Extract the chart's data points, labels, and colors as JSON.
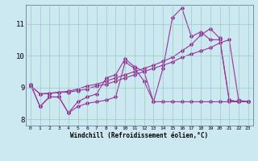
{
  "title": "",
  "xlabel": "Windchill (Refroidissement éolien,°C)",
  "ylabel": "",
  "background_color": "#cce8f0",
  "line_color": "#993399",
  "grid_color": "#99ccbb",
  "xlim": [
    -0.5,
    23.5
  ],
  "ylim": [
    7.8,
    11.6
  ],
  "yticks": [
    8,
    9,
    10,
    11
  ],
  "xticks": [
    0,
    1,
    2,
    3,
    4,
    5,
    6,
    7,
    8,
    9,
    10,
    11,
    12,
    13,
    14,
    15,
    16,
    17,
    18,
    19,
    20,
    21,
    22,
    23
  ],
  "x": [
    0,
    1,
    2,
    3,
    4,
    5,
    6,
    7,
    8,
    9,
    10,
    11,
    12,
    13,
    14,
    15,
    16,
    17,
    18,
    19,
    20,
    21,
    22,
    23
  ],
  "line1": [
    9.1,
    8.4,
    8.7,
    8.7,
    8.2,
    8.4,
    8.5,
    8.55,
    8.6,
    8.7,
    9.8,
    9.6,
    9.2,
    8.55,
    8.55,
    8.55,
    8.55,
    8.55,
    8.55,
    8.55,
    8.55,
    8.55,
    8.55,
    8.55
  ],
  "line2": [
    9.1,
    8.4,
    8.7,
    8.7,
    8.2,
    8.55,
    8.7,
    8.8,
    9.3,
    9.4,
    9.9,
    9.65,
    9.5,
    8.55,
    9.6,
    11.2,
    11.5,
    10.6,
    10.75,
    10.5,
    10.5,
    8.6,
    8.55,
    8.55
  ],
  "line3": [
    9.05,
    8.8,
    8.8,
    8.85,
    8.85,
    8.9,
    8.95,
    9.05,
    9.1,
    9.2,
    9.3,
    9.4,
    9.5,
    9.6,
    9.7,
    9.8,
    9.95,
    10.05,
    10.15,
    10.25,
    10.4,
    10.5,
    8.6,
    8.55
  ],
  "line4": [
    9.05,
    8.8,
    8.82,
    8.85,
    8.88,
    8.95,
    9.05,
    9.1,
    9.2,
    9.3,
    9.4,
    9.5,
    9.6,
    9.7,
    9.82,
    9.95,
    10.15,
    10.35,
    10.65,
    10.85,
    10.55,
    8.6,
    8.55,
    8.55
  ]
}
